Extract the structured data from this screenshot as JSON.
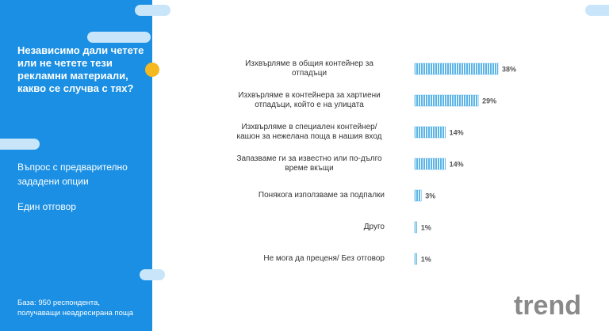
{
  "title": "Независимо дали четете или не четете тези рекламни материали, какво се случва с тях?",
  "question_type": "Въпрос с предварително зададени опции",
  "answer_type": "Един отговор",
  "base": "База:  950 респондента, получаващи неадресирана поща",
  "logo": "trend",
  "chart_data": {
    "type": "hbar",
    "color": "#5bb4e6",
    "categories": [
      "Изхвърляме в общия контейнер за отпадъци",
      "Изхвърляме в контейнера за хартиени отпадъци, който е на улицата",
      "Изхвърляме в специален контейнер/ кашон за нежелана поща в нашия вход",
      "Запазваме ги за известно или по-дълго време вкъщи",
      "Понякога използваме за подпалки",
      "Друго",
      "Не мога да преценя/ Без отговор"
    ],
    "values": [
      38,
      29,
      14,
      14,
      3,
      1,
      1
    ],
    "value_labels": [
      "38%",
      "29%",
      "14%",
      "14%",
      "3%",
      "1%",
      "1%"
    ]
  }
}
